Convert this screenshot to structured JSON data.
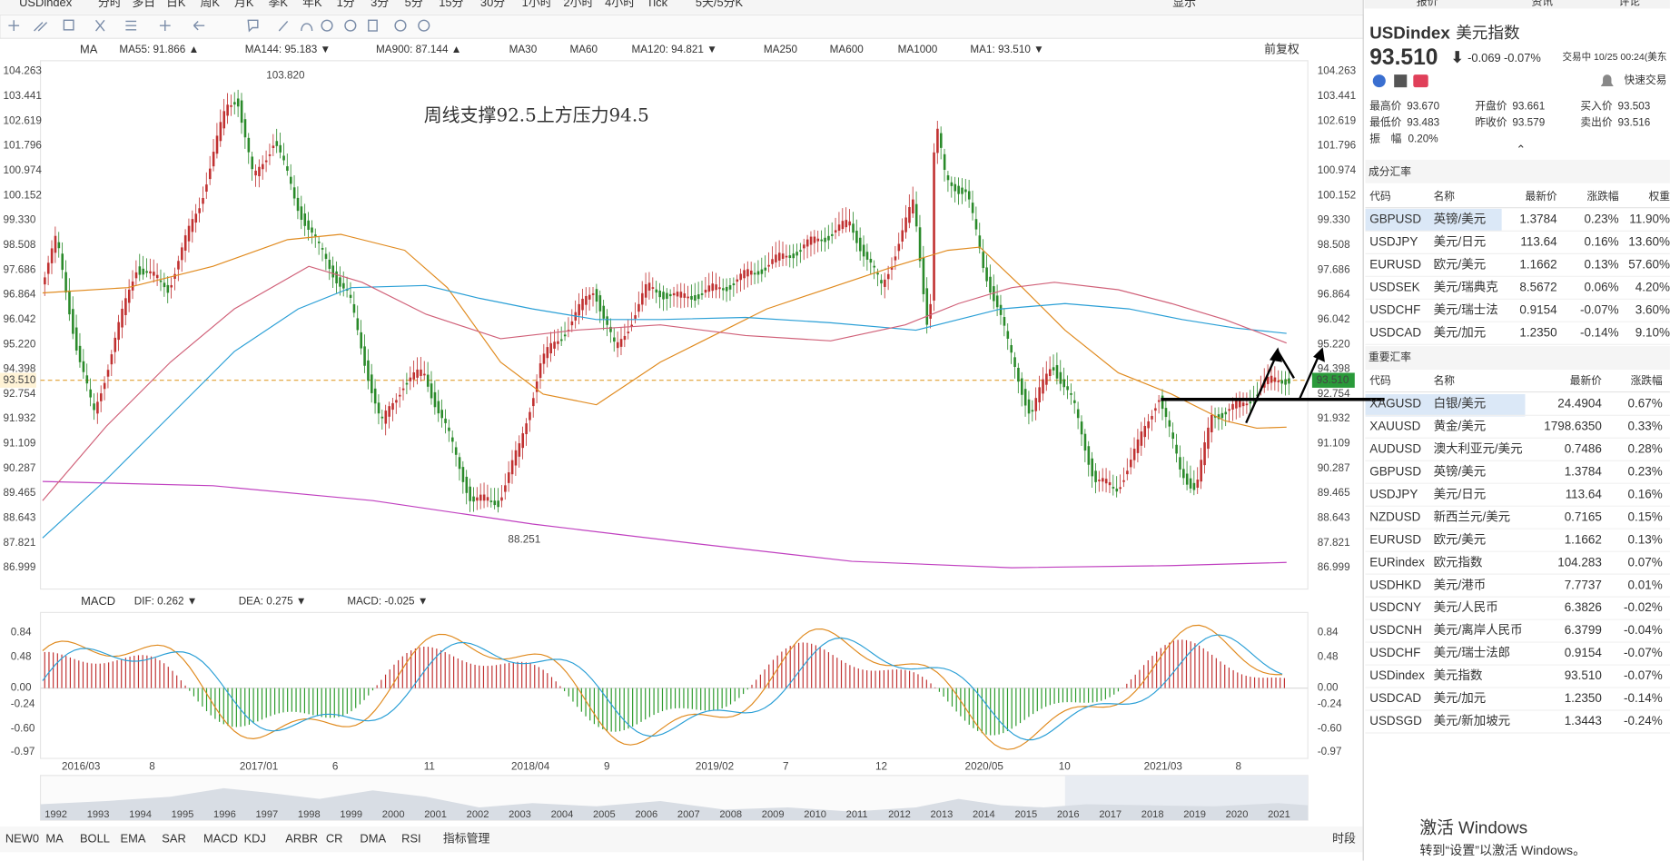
{
  "toolbar": {
    "tabs": [
      "USDindex",
      "分时",
      "多日",
      "日K",
      "周K",
      "月K",
      "季K",
      "年K",
      "1分",
      "3分",
      "5分",
      "15分",
      "30分",
      "1小时",
      "2小时",
      "4小时",
      "Tick",
      "5天/5分K"
    ],
    "active_index": 4,
    "display": "显示"
  },
  "indicator_legend": {
    "name": "MA",
    "items": [
      {
        "text": "MA55: 91.866 ▲",
        "color": "#e08a1e"
      },
      {
        "text": "MA144: 95.183 ▼",
        "color": "#2a9fd6"
      },
      {
        "text": "MA900: 87.144 ▲",
        "color": "#c040c0"
      },
      {
        "text": "MA30",
        "color": "#a8c8e8"
      },
      {
        "text": "MA60",
        "color": "#a8d8e8"
      },
      {
        "text": "MA120: 94.821 ▼",
        "color": "#d04060"
      },
      {
        "text": "MA250",
        "color": "#a8d0f0"
      },
      {
        "text": "MA600",
        "color": "#f0d890"
      },
      {
        "text": "MA1000",
        "color": "#b0c0e8"
      },
      {
        "text": "MA1: 93.510 ▼",
        "color": "#555555"
      }
    ],
    "adjust": "前复权"
  },
  "price_axis": {
    "labels": [
      "104.263",
      "103.441",
      "102.619",
      "101.796",
      "100.974",
      "100.152",
      "99.330",
      "98.508",
      "97.686",
      "96.864",
      "96.042",
      "95.220",
      "94.398",
      "92.754",
      "91.932",
      "91.109",
      "90.287",
      "89.465",
      "88.643",
      "87.821",
      "86.999"
    ],
    "current": "93.510"
  },
  "annotations": {
    "high": "103.820",
    "low": "88.251",
    "note": "周线支撑92.5上方压力94.5"
  },
  "macd": {
    "name": "MACD",
    "items": [
      {
        "text": "DIF: 0.262 ▼",
        "color": "#e08a1e"
      },
      {
        "text": "DEA: 0.275 ▼",
        "color": "#2a9fd6"
      },
      {
        "text": "MACD: -0.025 ▼",
        "color": "#c040c0"
      }
    ],
    "axis": [
      "0.84",
      "0.48",
      "0.00",
      "-0.24",
      "-0.60",
      "-0.97"
    ]
  },
  "time_axis": [
    "2016/03",
    "8",
    "2017/01",
    "6",
    "11",
    "2018/04",
    "9",
    "2019/02",
    "7",
    "12",
    "2020/05",
    "10",
    "2021/03",
    "8"
  ],
  "overview_years": [
    "1992",
    "1993",
    "1994",
    "1995",
    "1996",
    "1997",
    "1998",
    "1999",
    "2000",
    "2001",
    "2002",
    "2003",
    "2004",
    "2005",
    "2006",
    "2007",
    "2008",
    "2009",
    "2010",
    "2011",
    "2012",
    "2013",
    "2014",
    "2015",
    "2016",
    "2017",
    "2018",
    "2019",
    "2020",
    "2021"
  ],
  "indicator_tabs": [
    "NEW0",
    "MA",
    "BOLL",
    "EMA",
    "SAR",
    "MACD",
    "KDJ",
    "ARBR",
    "CR",
    "DMA",
    "RSI",
    "指标管理"
  ],
  "period_button": "时段",
  "side_tabs": [
    "报价",
    "资讯",
    "评论"
  ],
  "quote": {
    "code": "USDindex",
    "name": "美元指数",
    "price": "93.510",
    "change": "-0.069",
    "percent": "-0.07%",
    "status": "交易中 10/25 00:24(美东",
    "quick_trade": "快速交易",
    "stats": [
      [
        "最高价",
        "93.670"
      ],
      [
        "开盘价",
        "93.661"
      ],
      [
        "买入价",
        "93.503"
      ],
      [
        "最低价",
        "93.483"
      ],
      [
        "昨收价",
        "93.579"
      ],
      [
        "卖出价",
        "93.516"
      ],
      [
        "振　幅",
        "0.20%"
      ]
    ]
  },
  "components": {
    "title": "成分汇率",
    "headers": [
      "代码",
      "名称",
      "最新价",
      "涨跌幅",
      "权重"
    ],
    "rows": [
      [
        "GBPUSD",
        "英镑/美元",
        "1.3784",
        "0.23%",
        "11.90%"
      ],
      [
        "USDJPY",
        "美元/日元",
        "113.64",
        "0.16%",
        "13.60%"
      ],
      [
        "EURUSD",
        "欧元/美元",
        "1.1662",
        "0.13%",
        "57.60%"
      ],
      [
        "USDSEK",
        "美元/瑞典克",
        "8.5672",
        "0.06%",
        "4.20%"
      ],
      [
        "USDCHF",
        "美元/瑞士法",
        "0.9154",
        "-0.07%",
        "3.60%"
      ],
      [
        "USDCAD",
        "美元/加元",
        "1.2350",
        "-0.14%",
        "9.10%"
      ]
    ]
  },
  "major": {
    "title": "重要汇率",
    "headers": [
      "代码",
      "名称",
      "最新价",
      "涨跌幅"
    ],
    "rows": [
      [
        "XAGUSD",
        "白银/美元",
        "24.4904",
        "0.67%"
      ],
      [
        "XAUUSD",
        "黄金/美元",
        "1798.6350",
        "0.33%"
      ],
      [
        "AUDUSD",
        "澳大利亚元/美元",
        "0.7486",
        "0.28%"
      ],
      [
        "GBPUSD",
        "英镑/美元",
        "1.3784",
        "0.23%"
      ],
      [
        "USDJPY",
        "美元/日元",
        "113.64",
        "0.16%"
      ],
      [
        "NZDUSD",
        "新西兰元/美元",
        "0.7165",
        "0.15%"
      ],
      [
        "EURUSD",
        "欧元/美元",
        "1.1662",
        "0.13%"
      ],
      [
        "EURindex",
        "欧元指数",
        "104.283",
        "0.07%"
      ],
      [
        "USDHKD",
        "美元/港币",
        "7.7737",
        "0.01%"
      ],
      [
        "USDCNY",
        "美元/人民币",
        "6.3826",
        "-0.02%"
      ],
      [
        "USDCNH",
        "美元/离岸人民币",
        "6.3799",
        "-0.04%"
      ],
      [
        "USDCHF",
        "美元/瑞士法郎",
        "0.9154",
        "-0.07%"
      ],
      [
        "USDindex",
        "美元指数",
        "93.510",
        "-0.07%"
      ],
      [
        "USDCAD",
        "美元/加元",
        "1.2350",
        "-0.14%"
      ],
      [
        "USDSGD",
        "美元/新加坡元",
        "1.3443",
        "-0.24%"
      ]
    ]
  },
  "watermark": {
    "title": "激活 Windows",
    "hint": "转到“设置”以激活 Windows。"
  }
}
